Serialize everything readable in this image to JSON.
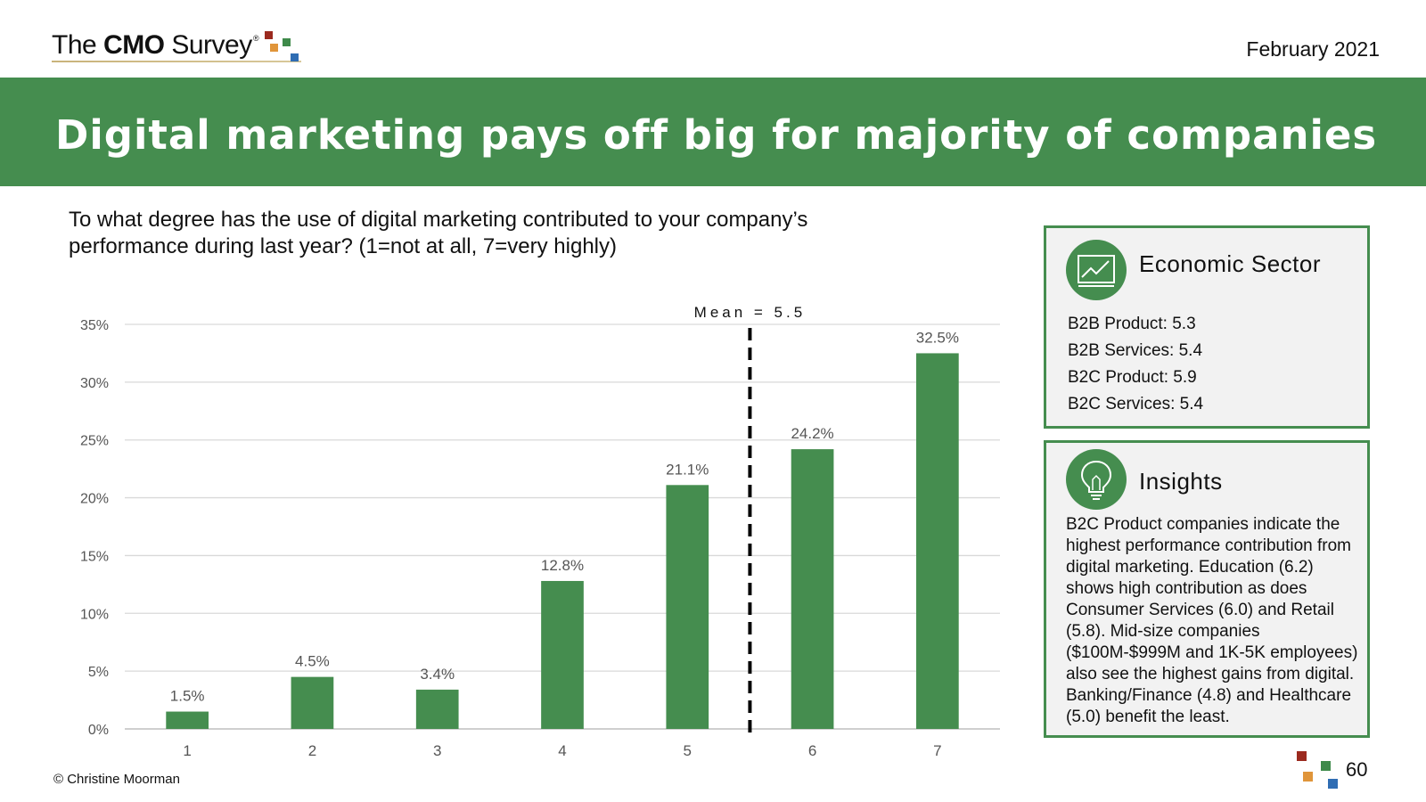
{
  "header": {
    "logo_pre": "The ",
    "logo_bold": "CMO",
    "logo_post": " Survey",
    "logo_mark": "®",
    "date": "February 2021"
  },
  "banner": {
    "title": "Digital marketing pays off big for majority of companies"
  },
  "question": "To what degree has the use of digital marketing contributed to your company’s performance during last year? (1=not at all, 7=very highly)",
  "chart_data": {
    "type": "bar",
    "categories": [
      "1",
      "2",
      "3",
      "4",
      "5",
      "6",
      "7"
    ],
    "values": [
      1.5,
      4.5,
      3.4,
      12.8,
      21.1,
      24.2,
      32.5
    ],
    "data_labels": [
      "1.5%",
      "4.5%",
      "3.4%",
      "12.8%",
      "21.1%",
      "24.2%",
      "32.5%"
    ],
    "ylim": [
      0,
      35
    ],
    "yticks": [
      0,
      5,
      10,
      15,
      20,
      25,
      30,
      35
    ],
    "ytick_labels": [
      "0%",
      "5%",
      "10%",
      "15%",
      "20%",
      "25%",
      "30%",
      "35%"
    ],
    "grid": true,
    "mean_value": 5.5,
    "mean_label": "Mean = 5.5",
    "bar_color": "#458d4f"
  },
  "sector_panel": {
    "title": "Economic Sector",
    "icon": "line-chart-icon",
    "items": [
      "B2B Product: 5.3",
      "B2B Services: 5.4",
      "B2C Product: 5.9",
      "B2C Services: 5.4"
    ]
  },
  "insights_panel": {
    "title": "Insights",
    "icon": "lightbulb-icon",
    "text": "B2C Product companies indicate the highest performance contribution from digital marketing. Education (6.2) shows high contribution as does Consumer Services (6.0) and Retail (5.8). Mid-size companies ($100M-$999M and 1K-5K employees) also see the highest gains from digital. Banking/Finance (4.8) and Healthcare (5.0) benefit the least."
  },
  "footer": {
    "copyright": "© Christine Moorman",
    "page_number": "60"
  },
  "colors": {
    "brand_green": "#458d4f",
    "logo_red": "#9b2a1f",
    "logo_orange": "#e0953a",
    "logo_green": "#3e8a4a",
    "logo_blue": "#2f6db3"
  }
}
